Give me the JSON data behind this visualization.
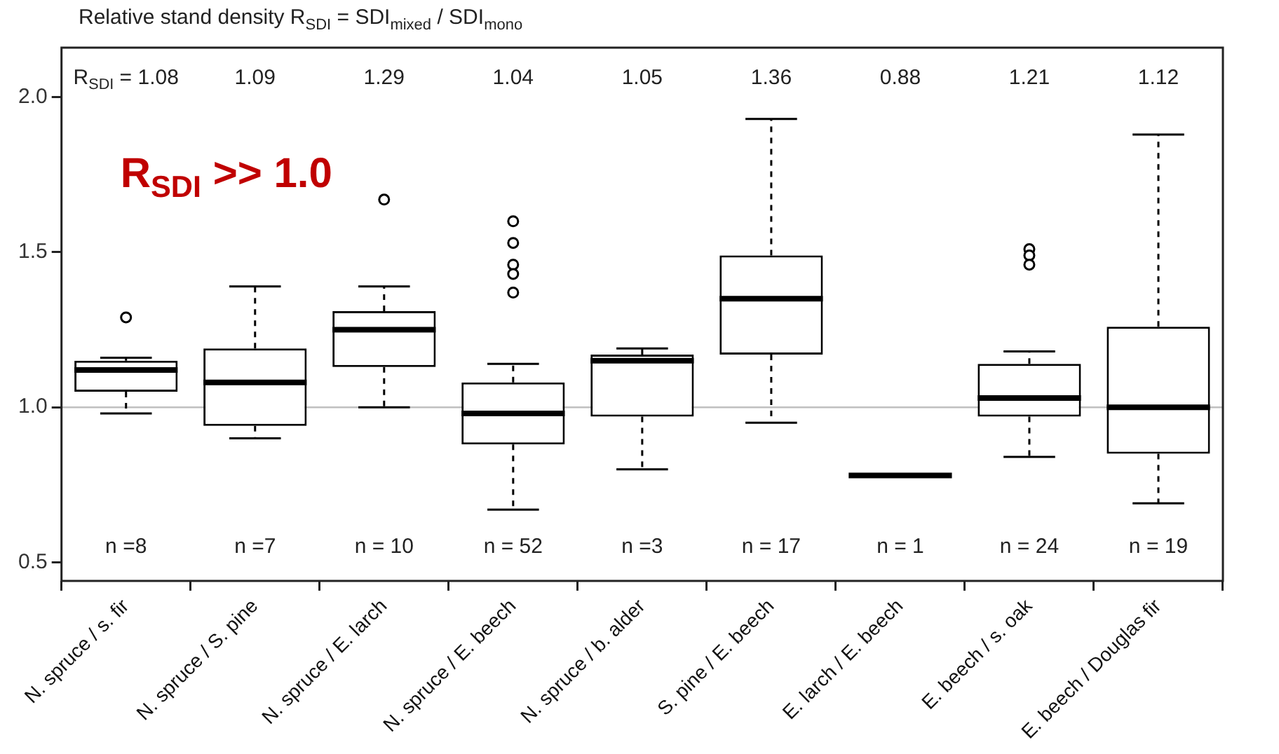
{
  "chart_data": {
    "type": "box",
    "title": "Relative stand density R$_{SDI}$ = SDI$_{mixed}$ / SDI$_{mono}$",
    "categories": [
      "N. spruce / s. fir",
      "N. spruce / S. pine",
      "N. spruce / E. larch",
      "N. spruce / E. beech",
      "N. spruce / b. alder",
      "S. pine / E. beech",
      "E. larch / E. beech",
      "E. beech / s. oak",
      "E. beech / Douglas fir"
    ],
    "boxes": [
      {
        "low": 0.98,
        "q1": 1.05,
        "median": 1.12,
        "q3": 1.15,
        "high": 1.16,
        "outliers": [
          1.29
        ]
      },
      {
        "low": 0.9,
        "q1": 0.94,
        "median": 1.08,
        "q3": 1.19,
        "high": 1.39
      },
      {
        "low": 1.0,
        "q1": 1.13,
        "median": 1.25,
        "q3": 1.31,
        "high": 1.39,
        "outliers": [
          1.67
        ]
      },
      {
        "low": 0.67,
        "q1": 0.88,
        "median": 0.98,
        "q3": 1.08,
        "high": 1.14,
        "outliers": [
          1.6,
          1.53,
          1.46,
          1.43,
          1.37
        ]
      },
      {
        "low": 0.8,
        "q1": 0.97,
        "median": 1.15,
        "q3": 1.17,
        "high": 1.19
      },
      {
        "low": 0.95,
        "q1": 1.17,
        "median": 1.35,
        "q3": 1.49,
        "high": 1.93
      },
      {
        "low": 0.78,
        "q1": 0.78,
        "median": 0.78,
        "q3": 0.78,
        "high": 0.78
      },
      {
        "low": 0.84,
        "q1": 0.97,
        "median": 1.03,
        "q3": 1.14,
        "high": 1.18,
        "outliers": [
          1.51,
          1.49,
          1.46
        ]
      },
      {
        "low": 0.69,
        "q1": 0.85,
        "median": 1.0,
        "q3": 1.26,
        "high": 1.88
      }
    ],
    "color": "#000000",
    "ylim": [
      0.44,
      2.16
    ],
    "yticks": [
      {
        "value": 0.5,
        "label": "0.5"
      },
      {
        "value": 1,
        "label": "1.0"
      },
      {
        "value": 1.5,
        "label": "1.5"
      },
      {
        "value": 2,
        "label": "2.0"
      }
    ],
    "grid": false,
    "legend": false,
    "ref_lines": [
      {
        "axis": "y",
        "value": 1,
        "color": "#c0c0c0"
      }
    ],
    "annotations": [
      "R$_{SDI}$ >> 1.0",
      "R$_{SDI}$ = 1.08",
      "1.09",
      "1.29",
      "1.04",
      "1.05",
      "1.36",
      "0.88",
      "1.21",
      "1.12",
      "n =8",
      "n =7",
      "n = 10",
      "n = 52",
      "n =3",
      "n = 17",
      "n = 1",
      "n = 24",
      "n = 19"
    ]
  }
}
